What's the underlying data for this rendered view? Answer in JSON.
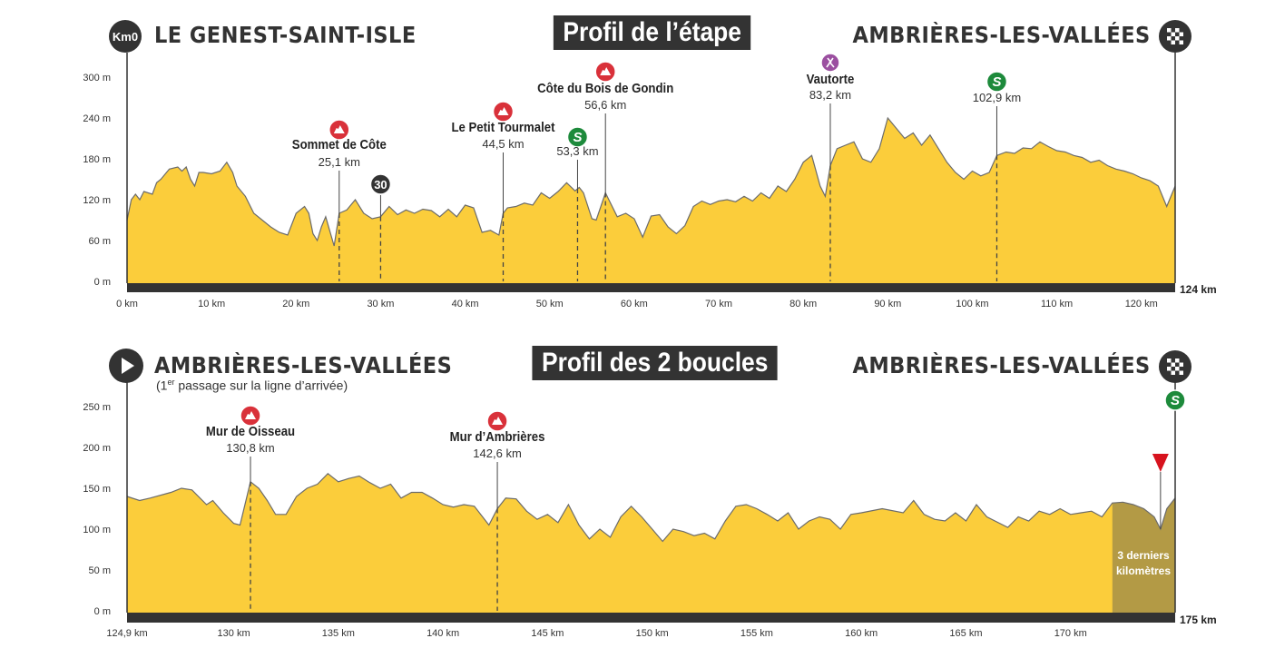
{
  "colors": {
    "profile_fill": "#fbcd3b",
    "profile_line": "#6b6b6b",
    "base_bar": "#333333",
    "last3_fill": "#b39a45",
    "climb": "#d9313a",
    "sprint": "#1d8a3b",
    "feed": "#9b4fa0",
    "flamme": "#d7131e"
  },
  "stage": {
    "start_badge": "Km0",
    "start_city": "LE GENEST-SAINT-ISLE",
    "title": "Profil de l’étape",
    "finish_city": "AMBRIÈRES-LES-VALLÉES",
    "end_label": "124 km"
  },
  "loops": {
    "start_city": "AMBRIÈRES-LES-VALLÉES",
    "start_note_sup": "er",
    "start_note_pre": "(1",
    "start_note_post": " passage sur la ligne d’arrivée)",
    "title": "Profil des 2 boucles",
    "finish_city": "AMBRIÈRES-LES-VALLÉES",
    "end_label": "175 km",
    "last_km_label_1": "3 derniers",
    "last_km_label_2": "kilomètres"
  },
  "chart_data": [
    {
      "type": "area",
      "title": "Profil de l’étape",
      "xlabel": "km",
      "ylabel": "m",
      "xlim": [
        0,
        124
      ],
      "ylim": [
        0,
        300
      ],
      "x_ticks": [
        "0 km",
        "10 km",
        "20 km",
        "30 km",
        "40 km",
        "50 km",
        "60 km",
        "70 km",
        "80 km",
        "90 km",
        "100 km",
        "110 km",
        "120 km"
      ],
      "x_tick_values": [
        0,
        10,
        20,
        30,
        40,
        50,
        60,
        70,
        80,
        90,
        100,
        110,
        120
      ],
      "y_ticks": [
        "0 m",
        "60 m",
        "120 m",
        "180 m",
        "240 m",
        "300 m"
      ],
      "y_tick_values": [
        0,
        60,
        120,
        180,
        240,
        300
      ],
      "profile": [
        [
          0,
          90
        ],
        [
          0.5,
          120
        ],
        [
          1,
          128
        ],
        [
          1.5,
          120
        ],
        [
          2,
          132
        ],
        [
          3,
          128
        ],
        [
          3.5,
          145
        ],
        [
          4,
          150
        ],
        [
          5,
          165
        ],
        [
          6,
          168
        ],
        [
          6.5,
          162
        ],
        [
          7,
          168
        ],
        [
          7.5,
          150
        ],
        [
          8,
          140
        ],
        [
          8.5,
          160
        ],
        [
          9,
          160
        ],
        [
          10,
          158
        ],
        [
          11,
          162
        ],
        [
          11.8,
          175
        ],
        [
          12.5,
          160
        ],
        [
          13,
          140
        ],
        [
          14,
          125
        ],
        [
          15,
          100
        ],
        [
          16,
          90
        ],
        [
          17,
          80
        ],
        [
          18,
          72
        ],
        [
          19,
          68
        ],
        [
          20,
          100
        ],
        [
          21,
          110
        ],
        [
          21.5,
          100
        ],
        [
          22,
          70
        ],
        [
          22.5,
          60
        ],
        [
          23,
          80
        ],
        [
          23.5,
          95
        ],
        [
          24.5,
          52
        ],
        [
          25.1,
          100
        ],
        [
          26,
          105
        ],
        [
          27,
          120
        ],
        [
          28,
          100
        ],
        [
          29,
          92
        ],
        [
          30,
          95
        ],
        [
          31,
          110
        ],
        [
          32,
          98
        ],
        [
          33,
          105
        ],
        [
          34,
          100
        ],
        [
          35,
          106
        ],
        [
          36,
          104
        ],
        [
          37,
          95
        ],
        [
          38,
          106
        ],
        [
          39,
          95
        ],
        [
          40,
          112
        ],
        [
          41,
          108
        ],
        [
          42,
          72
        ],
        [
          43,
          75
        ],
        [
          44,
          68
        ],
        [
          44.5,
          100
        ],
        [
          45,
          108
        ],
        [
          46,
          110
        ],
        [
          47,
          115
        ],
        [
          48,
          112
        ],
        [
          49,
          130
        ],
        [
          50,
          122
        ],
        [
          51,
          132
        ],
        [
          52,
          145
        ],
        [
          53,
          133
        ],
        [
          53.5,
          138
        ],
        [
          54,
          130
        ],
        [
          55,
          92
        ],
        [
          55.5,
          90
        ],
        [
          56.6,
          130
        ],
        [
          57,
          120
        ],
        [
          58,
          95
        ],
        [
          59,
          100
        ],
        [
          60,
          92
        ],
        [
          61,
          65
        ],
        [
          62,
          96
        ],
        [
          63,
          98
        ],
        [
          64,
          80
        ],
        [
          65,
          70
        ],
        [
          66,
          82
        ],
        [
          67,
          110
        ],
        [
          68,
          118
        ],
        [
          69,
          113
        ],
        [
          70,
          118
        ],
        [
          71,
          120
        ],
        [
          72,
          117
        ],
        [
          73,
          125
        ],
        [
          74,
          118
        ],
        [
          75,
          130
        ],
        [
          76,
          122
        ],
        [
          77,
          140
        ],
        [
          78,
          132
        ],
        [
          79,
          150
        ],
        [
          80,
          175
        ],
        [
          81,
          185
        ],
        [
          82,
          140
        ],
        [
          82.6,
          125
        ],
        [
          83.2,
          170
        ],
        [
          84,
          195
        ],
        [
          85,
          200
        ],
        [
          86,
          205
        ],
        [
          87,
          180
        ],
        [
          88,
          175
        ],
        [
          89,
          195
        ],
        [
          90,
          240
        ],
        [
          91,
          225
        ],
        [
          92,
          210
        ],
        [
          93,
          218
        ],
        [
          94,
          200
        ],
        [
          95,
          215
        ],
        [
          96,
          195
        ],
        [
          97,
          175
        ],
        [
          98,
          160
        ],
        [
          99,
          150
        ],
        [
          100,
          162
        ],
        [
          101,
          155
        ],
        [
          102,
          160
        ],
        [
          102.9,
          185
        ],
        [
          104,
          190
        ],
        [
          105,
          188
        ],
        [
          106,
          196
        ],
        [
          107,
          195
        ],
        [
          108,
          205
        ],
        [
          109,
          198
        ],
        [
          110,
          192
        ],
        [
          111,
          190
        ],
        [
          112,
          185
        ],
        [
          113,
          182
        ],
        [
          114,
          175
        ],
        [
          115,
          178
        ],
        [
          116,
          170
        ],
        [
          117,
          165
        ],
        [
          118,
          162
        ],
        [
          119,
          158
        ],
        [
          120,
          152
        ],
        [
          121,
          148
        ],
        [
          122,
          140
        ],
        [
          123,
          110
        ],
        [
          124,
          140
        ]
      ],
      "markers": [
        {
          "type": "climb",
          "name": "Sommet de Côte",
          "km": 25.1,
          "km_label": "25,1 km"
        },
        {
          "type": "bonus",
          "name": "30",
          "km": 30,
          "km_label": ""
        },
        {
          "type": "climb",
          "name": "Le Petit Tourmalet",
          "km": 44.5,
          "km_label": "44,5 km"
        },
        {
          "type": "sprint",
          "name": "",
          "km": 53.3,
          "km_label": "53,3 km"
        },
        {
          "type": "climb",
          "name": "Côte du Bois de Gondin",
          "km": 56.6,
          "km_label": "56,6 km"
        },
        {
          "type": "feed",
          "name": "Vautorte",
          "km": 83.2,
          "km_label": "83,2 km"
        },
        {
          "type": "sprint",
          "name": "",
          "km": 102.9,
          "km_label": "102,9 km"
        }
      ]
    },
    {
      "type": "area",
      "title": "Profil des 2 boucles",
      "xlabel": "km",
      "ylabel": "m",
      "xlim": [
        124.9,
        175
      ],
      "ylim": [
        0,
        250
      ],
      "x_ticks": [
        "124,9 km",
        "130 km",
        "135 km",
        "140 km",
        "145 km",
        "150 km",
        "155 km",
        "160 km",
        "165 km",
        "170 km"
      ],
      "x_tick_values": [
        124.9,
        130,
        135,
        140,
        145,
        150,
        155,
        160,
        165,
        170
      ],
      "y_ticks": [
        "0 m",
        "50 m",
        "100 m",
        "150 m",
        "200 m",
        "250 m"
      ],
      "y_tick_values": [
        0,
        50,
        100,
        150,
        200,
        250
      ],
      "last_km_from": 172,
      "profile": [
        [
          124.9,
          140
        ],
        [
          125.5,
          135
        ],
        [
          126,
          138
        ],
        [
          127,
          145
        ],
        [
          127.5,
          150
        ],
        [
          128,
          148
        ],
        [
          128.7,
          130
        ],
        [
          129,
          135
        ],
        [
          129.5,
          120
        ],
        [
          130,
          107
        ],
        [
          130.3,
          105
        ],
        [
          130.8,
          158
        ],
        [
          131.2,
          150
        ],
        [
          131.6,
          135
        ],
        [
          132,
          118
        ],
        [
          132.5,
          118
        ],
        [
          133,
          140
        ],
        [
          133.5,
          150
        ],
        [
          134,
          155
        ],
        [
          134.5,
          168
        ],
        [
          135,
          158
        ],
        [
          135.5,
          162
        ],
        [
          136,
          165
        ],
        [
          136.5,
          157
        ],
        [
          137,
          150
        ],
        [
          137.5,
          155
        ],
        [
          138,
          138
        ],
        [
          138.5,
          145
        ],
        [
          139,
          145
        ],
        [
          139.5,
          138
        ],
        [
          140,
          130
        ],
        [
          140.5,
          127
        ],
        [
          141,
          130
        ],
        [
          141.5,
          128
        ],
        [
          142.2,
          105
        ],
        [
          142.6,
          125
        ],
        [
          143,
          138
        ],
        [
          143.5,
          137
        ],
        [
          144,
          122
        ],
        [
          144.5,
          112
        ],
        [
          145,
          118
        ],
        [
          145.5,
          108
        ],
        [
          146,
          130
        ],
        [
          146.5,
          105
        ],
        [
          147,
          88
        ],
        [
          147.5,
          100
        ],
        [
          148,
          90
        ],
        [
          148.5,
          115
        ],
        [
          149,
          128
        ],
        [
          149.5,
          115
        ],
        [
          150,
          100
        ],
        [
          150.5,
          85
        ],
        [
          151,
          100
        ],
        [
          151.5,
          97
        ],
        [
          152,
          92
        ],
        [
          152.5,
          95
        ],
        [
          153,
          88
        ],
        [
          153.5,
          110
        ],
        [
          154,
          128
        ],
        [
          154.5,
          130
        ],
        [
          155,
          125
        ],
        [
          155.5,
          118
        ],
        [
          156,
          110
        ],
        [
          156.5,
          120
        ],
        [
          157,
          100
        ],
        [
          157.5,
          110
        ],
        [
          158,
          115
        ],
        [
          158.5,
          112
        ],
        [
          159,
          100
        ],
        [
          159.5,
          118
        ],
        [
          160,
          120
        ],
        [
          161,
          125
        ],
        [
          162,
          120
        ],
        [
          162.5,
          135
        ],
        [
          163,
          118
        ],
        [
          163.5,
          112
        ],
        [
          164,
          110
        ],
        [
          164.5,
          120
        ],
        [
          165,
          110
        ],
        [
          165.5,
          130
        ],
        [
          166,
          115
        ],
        [
          167,
          102
        ],
        [
          167.5,
          115
        ],
        [
          168,
          110
        ],
        [
          168.5,
          122
        ],
        [
          169,
          118
        ],
        [
          169.5,
          125
        ],
        [
          170,
          118
        ],
        [
          170.5,
          120
        ],
        [
          171,
          122
        ],
        [
          171.5,
          115
        ],
        [
          172,
          132
        ],
        [
          172.5,
          133
        ],
        [
          173,
          130
        ],
        [
          173.5,
          125
        ],
        [
          174,
          115
        ],
        [
          174.3,
          100
        ],
        [
          174.6,
          125
        ],
        [
          175,
          138
        ]
      ],
      "markers": [
        {
          "type": "climb",
          "name": "Mur de Oisseau",
          "km": 130.8,
          "km_label": "130,8 km"
        },
        {
          "type": "climb",
          "name": "Mur d’Ambrières",
          "km": 142.6,
          "km_label": "142,6 km"
        },
        {
          "type": "flamme",
          "name": "",
          "km": 174.3,
          "km_label": ""
        },
        {
          "type": "sprint",
          "name": "",
          "km": 175,
          "km_label": ""
        }
      ]
    }
  ]
}
